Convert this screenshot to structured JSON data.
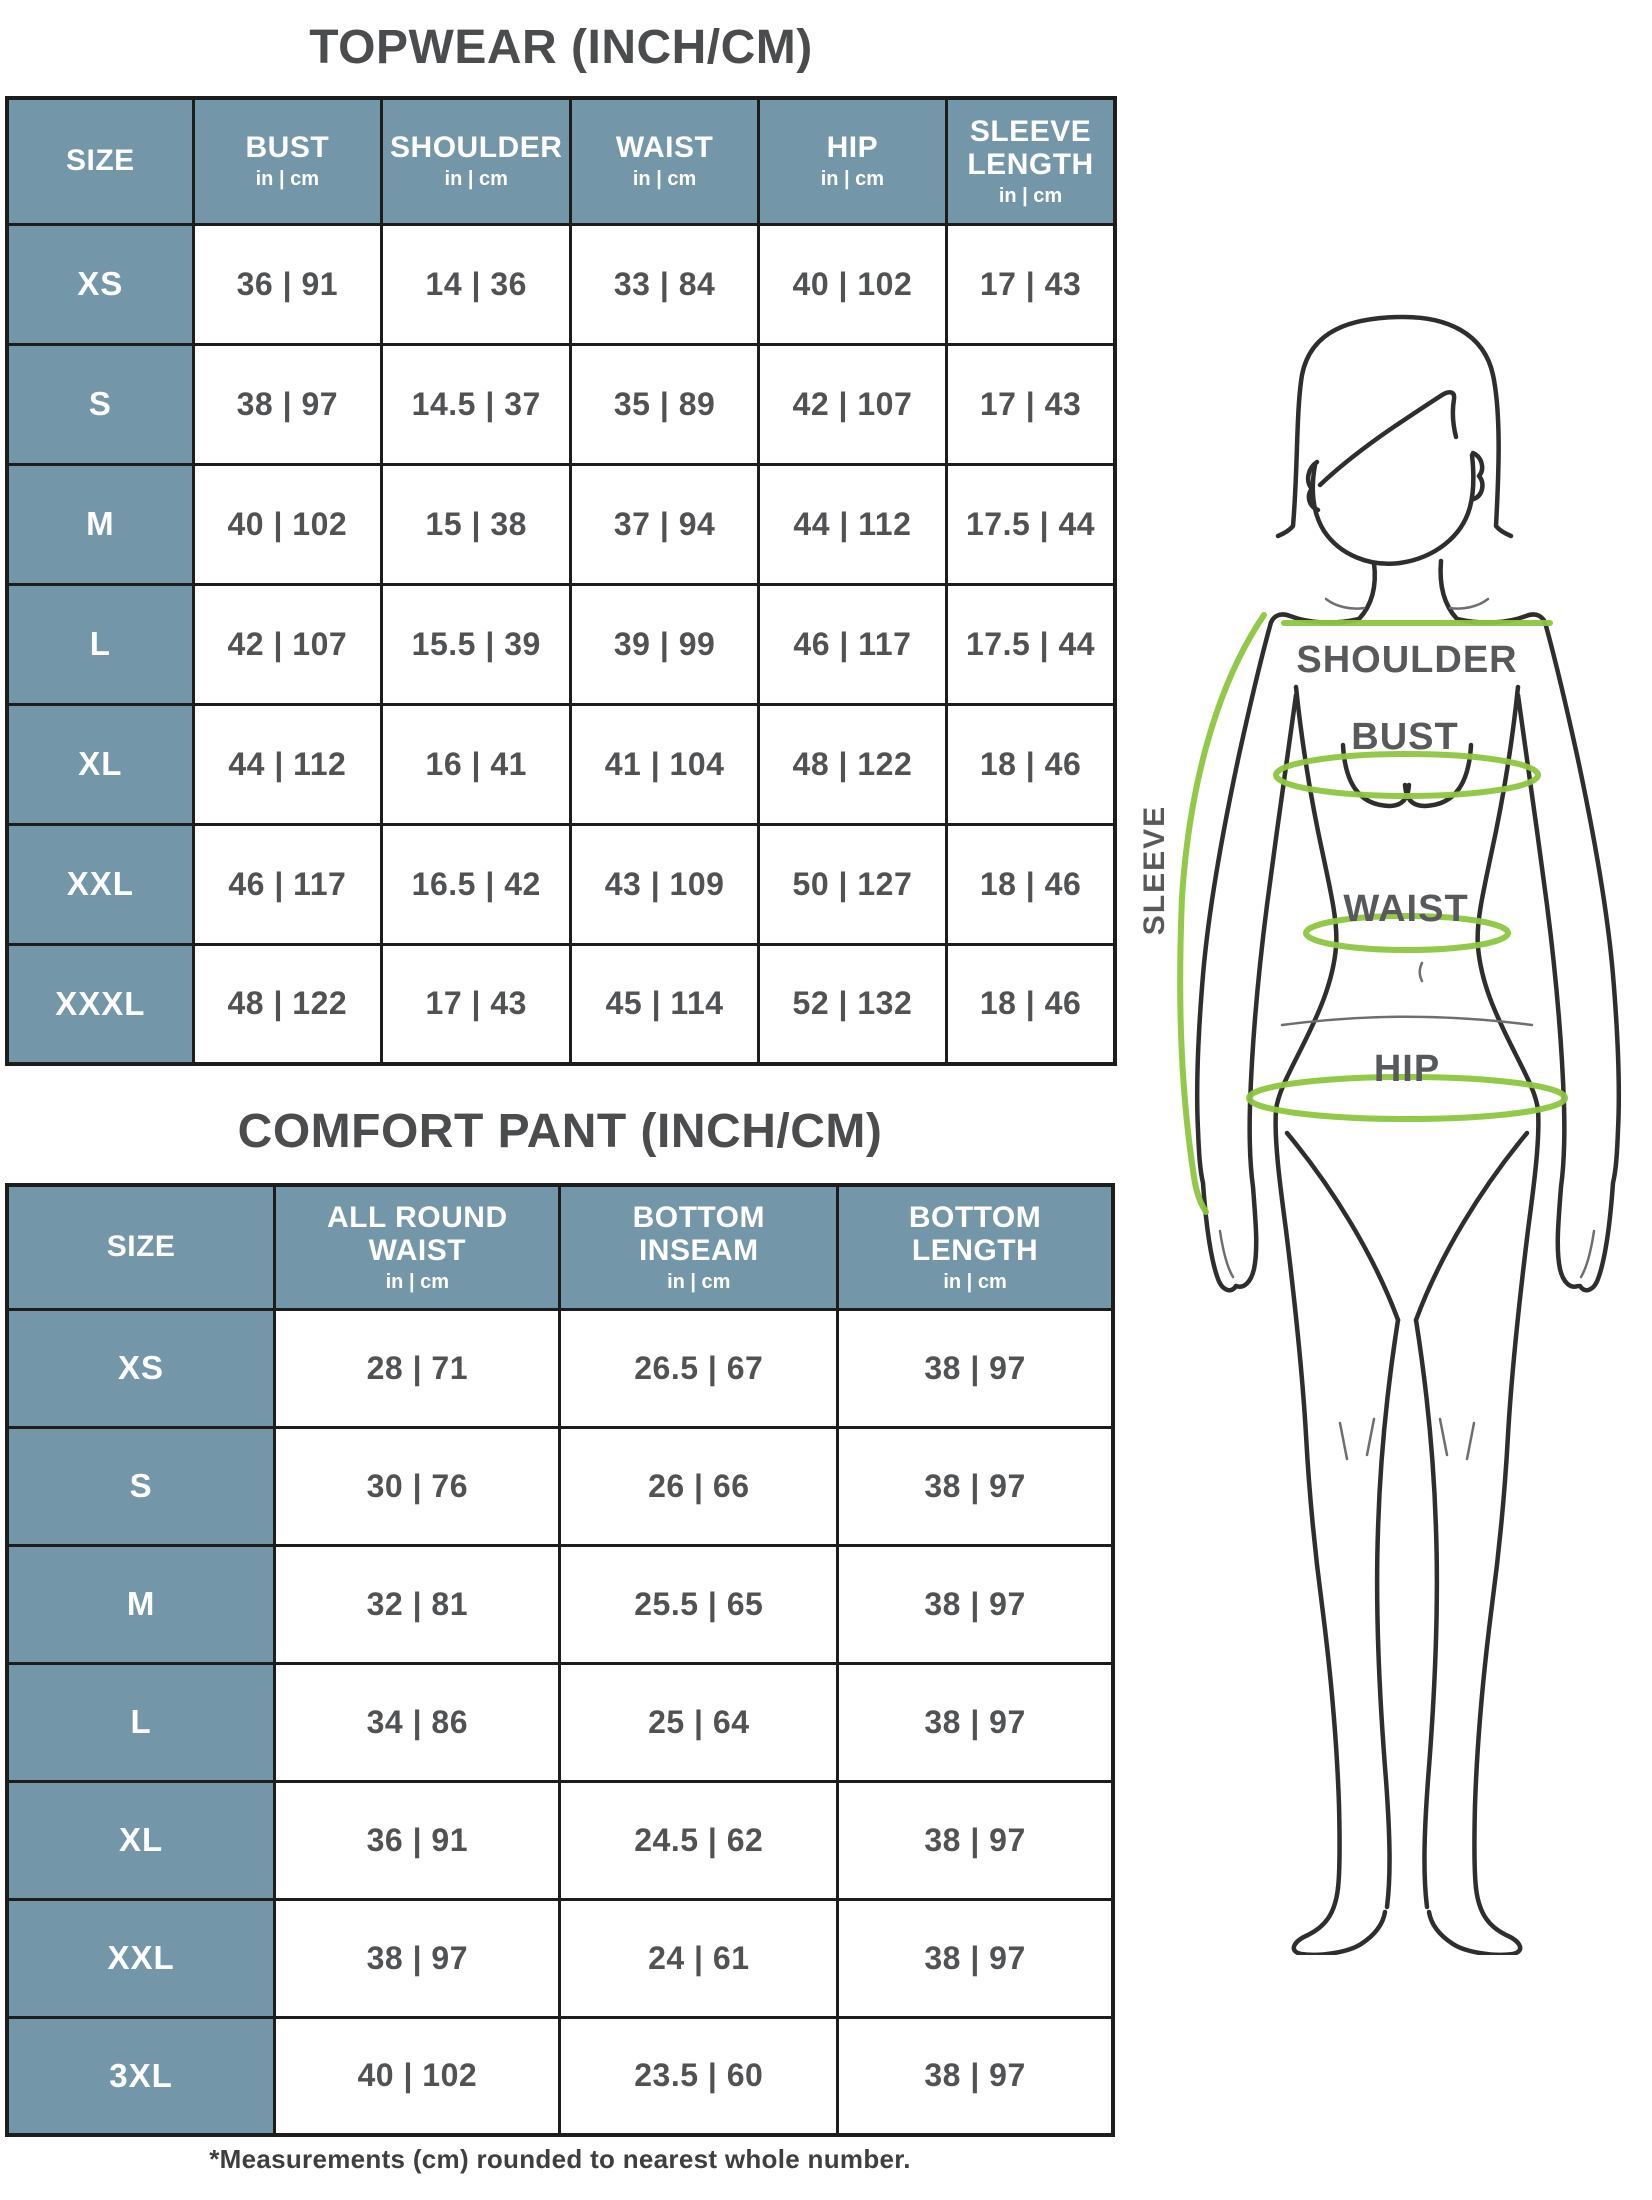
{
  "colors": {
    "header_bg": "#7396A9",
    "border": "#1d1d1d",
    "text_dark": "#515254",
    "title": "#4b4c4e",
    "green": "#8CC63F",
    "outline": "#2e2e2e"
  },
  "tables": {
    "topwear": {
      "title": "TOPWEAR (INCH/CM)",
      "unit_sub": "in | cm",
      "columns": [
        {
          "label": "SIZE",
          "sub": ""
        },
        {
          "label": "BUST",
          "sub": "in | cm"
        },
        {
          "label": "SHOULDER",
          "sub": "in | cm"
        },
        {
          "label": "WAIST",
          "sub": "in | cm"
        },
        {
          "label": "HIP",
          "sub": "in | cm"
        },
        {
          "label": "SLEEVE\nLENGTH",
          "sub": "in | cm"
        }
      ],
      "rows": [
        {
          "size": "XS",
          "values": [
            "36 | 91",
            "14 | 36",
            "33 | 84",
            "40 | 102",
            "17 | 43"
          ]
        },
        {
          "size": "S",
          "values": [
            "38 | 97",
            "14.5 | 37",
            "35 | 89",
            "42 | 107",
            "17 | 43"
          ]
        },
        {
          "size": "M",
          "values": [
            "40 | 102",
            "15 | 38",
            "37 | 94",
            "44 | 112",
            "17.5 | 44"
          ]
        },
        {
          "size": "L",
          "values": [
            "42 | 107",
            "15.5 | 39",
            "39 | 99",
            "46 | 117",
            "17.5 | 44"
          ]
        },
        {
          "size": "XL",
          "values": [
            "44 | 112",
            "16 | 41",
            "41 | 104",
            "48 | 122",
            "18 | 46"
          ]
        },
        {
          "size": "XXL",
          "values": [
            "46 | 117",
            "16.5 | 42",
            "43 | 109",
            "50 | 127",
            "18 | 46"
          ]
        },
        {
          "size": "XXXL",
          "values": [
            "48 | 122",
            "17 | 43",
            "45 | 114",
            "52 | 132",
            "18 | 46"
          ]
        }
      ]
    },
    "comfort": {
      "title": "COMFORT PANT (INCH/CM)",
      "unit_sub": "in | cm",
      "columns": [
        {
          "label": "SIZE",
          "sub": ""
        },
        {
          "label": "ALL ROUND\nWAIST",
          "sub": "in | cm"
        },
        {
          "label": "BOTTOM\nINSEAM",
          "sub": "in | cm"
        },
        {
          "label": "BOTTOM\nLENGTH",
          "sub": "in | cm"
        }
      ],
      "rows": [
        {
          "size": "XS",
          "values": [
            "28 | 71",
            "26.5 | 67",
            "38 | 97"
          ]
        },
        {
          "size": "S",
          "values": [
            "30 | 76",
            "26 | 66",
            "38 | 97"
          ]
        },
        {
          "size": "M",
          "values": [
            "32 | 81",
            "25.5 | 65",
            "38 | 97"
          ]
        },
        {
          "size": "L",
          "values": [
            "34 | 86",
            "25 | 64",
            "38 | 97"
          ]
        },
        {
          "size": "XL",
          "values": [
            "36 | 91",
            "24.5 | 62",
            "38 | 97"
          ]
        },
        {
          "size": "XXL",
          "values": [
            "38 | 97",
            "24 | 61",
            "38 | 97"
          ]
        },
        {
          "size": "3XL",
          "values": [
            "40 | 102",
            "23.5 | 60",
            "38 | 97"
          ]
        }
      ]
    }
  },
  "footnote": "*Measurements (cm) rounded to nearest whole number.",
  "figure": {
    "labels": {
      "shoulder": "SHOULDER",
      "bust": "BUST",
      "waist": "WAIST",
      "hip": "HIP",
      "sleeve": "SLEEVE"
    }
  }
}
